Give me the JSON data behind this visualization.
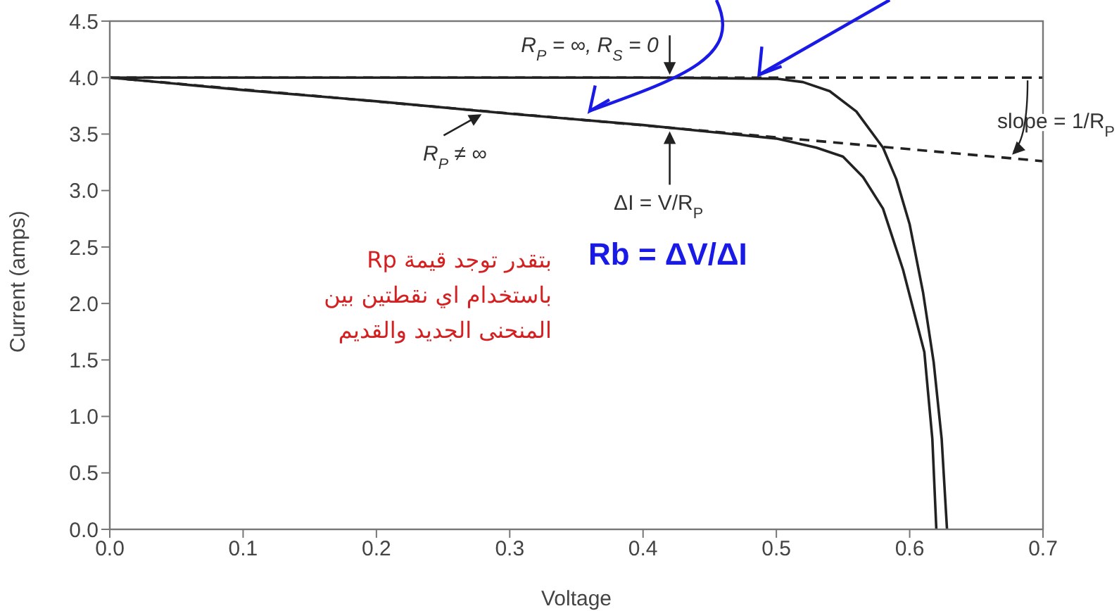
{
  "chart_data": {
    "type": "line",
    "xlabel": "Voltage",
    "ylabel": "Current (amps)",
    "xlim": [
      0,
      0.7
    ],
    "xticks": [
      {
        "value": 0,
        "label": "0.0"
      },
      0.1,
      0.2,
      0.3,
      0.4,
      0.5,
      0.6,
      0.7
    ],
    "ylim": [
      0,
      4.5
    ],
    "yticks": [
      {
        "value": 0,
        "label": "0.0"
      },
      0.5,
      {
        "value": 1,
        "label": "1.0"
      },
      1.5,
      {
        "value": 2,
        "label": "2.0"
      },
      2.5,
      {
        "value": 3,
        "label": "3.0"
      },
      3.5,
      {
        "value": 4,
        "label": "4.0"
      },
      4.5
    ],
    "marker": "none",
    "series": [
      {
        "color": "#222222",
        "line_style": "solid",
        "x": [
          0,
          0.1,
          0.2,
          0.3,
          0.4,
          0.5,
          0.52,
          0.54,
          0.56,
          0.58,
          0.59,
          0.6,
          0.61,
          0.618,
          0.624,
          0.628
        ],
        "values": [
          4.0,
          4.0,
          4.0,
          4.0,
          4.0,
          3.99,
          3.96,
          3.88,
          3.7,
          3.38,
          3.1,
          2.7,
          2.1,
          1.48,
          0.8,
          0
        ]
      },
      {
        "color": "#222222",
        "line_style": "solid",
        "x": [
          0,
          0.1,
          0.2,
          0.3,
          0.4,
          0.45,
          0.5,
          0.53,
          0.55,
          0.565,
          0.58,
          0.595,
          0.611,
          0.617,
          0.62
        ],
        "values": [
          4.0,
          3.89,
          3.79,
          3.68,
          3.58,
          3.52,
          3.46,
          3.38,
          3.3,
          3.12,
          2.84,
          2.3,
          1.57,
          0.8,
          0
        ]
      },
      {
        "color": "#222222",
        "line_style": "dashed",
        "x": [
          0,
          0.7
        ],
        "values": [
          4.0,
          4.0
        ]
      },
      {
        "color": "#222222",
        "line_style": "dashed",
        "x": [
          0,
          0.7
        ],
        "values": [
          4.0,
          3.26
        ]
      }
    ],
    "annotations": [
      {
        "text": "R$_{P}$ = ∞, R$_{S}$ = 0",
        "x": 0.42,
        "y": 4.0
      },
      {
        "text": "R$_{P}$ ≠ ∞",
        "x": 0.28,
        "y": 3.7
      },
      {
        "text": "ΔI = V/R$_{P}$",
        "x": 0.42,
        "y": 3.55
      },
      {
        "text": "slope = 1/R$_{P}$",
        "x": 0.68,
        "y": 3.28
      },
      "بتقدر توجد قيمة Rp\nباستخدام اي نقطتين بين\nالمنحنى الجديد والقديم",
      "Rb = ΔV/ΔI"
    ]
  }
}
